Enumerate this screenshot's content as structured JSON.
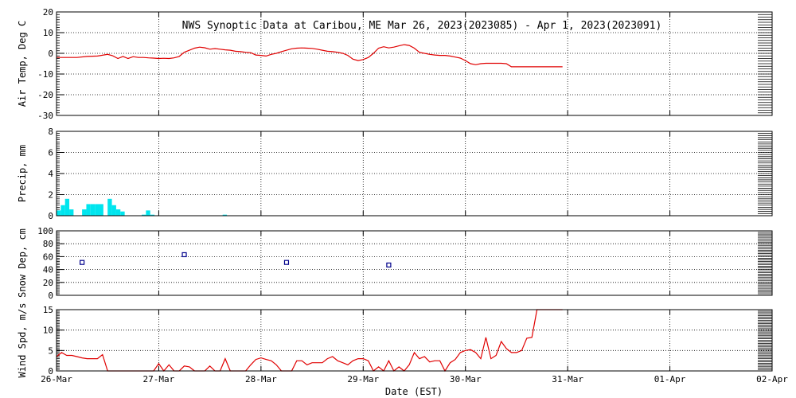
{
  "colors": {
    "air": "#e00000",
    "precip": "#00e5ee",
    "snow": "#00008b",
    "wind": "#e00000",
    "axis": "#000000",
    "grid": "#000000"
  },
  "chart_data": {
    "title": "NWS Synoptic Data at Caribou, ME   Mar 26, 2023(2023085) - Apr  1, 2023(2023091)",
    "xlabel": "Date (EST)",
    "x_tick_labels": [
      "26-Mar",
      "27-Mar",
      "28-Mar",
      "29-Mar",
      "30-Mar",
      "31-Mar",
      "01-Apr",
      "02-Apr"
    ],
    "x_range_days": [
      0,
      7
    ],
    "grid": "dotted",
    "panels": [
      {
        "key": "air",
        "type": "line",
        "ylabel": "Air Temp, Deg C",
        "ylim": [
          -30,
          20
        ],
        "yticks": [
          20,
          10,
          0,
          -10,
          -20,
          -30
        ],
        "series": [
          {
            "x": [
              0,
              0.1,
              0.2,
              0.3,
              0.4,
              0.5,
              0.55,
              0.6,
              0.65,
              0.7,
              0.75,
              0.8,
              0.85,
              0.9,
              0.95,
              1.0,
              1.05,
              1.1,
              1.15,
              1.2,
              1.25,
              1.3,
              1.35,
              1.4,
              1.45,
              1.5,
              1.55,
              1.6,
              1.65,
              1.7,
              1.75,
              1.8,
              1.85,
              1.9,
              1.95,
              2.0,
              2.05,
              2.1,
              2.15,
              2.2,
              2.25,
              2.3,
              2.35,
              2.4,
              2.45,
              2.5,
              2.55,
              2.6,
              2.65,
              2.7,
              2.75,
              2.8,
              2.85,
              2.9,
              2.95,
              3.0,
              3.05,
              3.1,
              3.15,
              3.2,
              3.25,
              3.3,
              3.35,
              3.4,
              3.45,
              3.5,
              3.55,
              3.6,
              3.65,
              3.7,
              3.75,
              3.8,
              3.85,
              3.9,
              3.95,
              4.0,
              4.05,
              4.1,
              4.15,
              4.2,
              4.25,
              4.3,
              4.35,
              4.4,
              4.45,
              4.5,
              4.55,
              4.6,
              4.65,
              4.7,
              4.75,
              4.8,
              4.85,
              4.9,
              4.95
            ],
            "y": [
              -2,
              -2,
              -2,
              -1.5,
              -1.3,
              -0.5,
              -1.2,
              -2.5,
              -1.5,
              -2.5,
              -1.6,
              -2,
              -2,
              -2.2,
              -2.3,
              -2.5,
              -2.4,
              -2.5,
              -2.2,
              -1.5,
              0.5,
              1.5,
              2.5,
              3,
              2.7,
              2,
              2.3,
              2,
              1.7,
              1.5,
              1,
              0.8,
              0.5,
              0.3,
              -0.8,
              -1,
              -1.3,
              -0.5,
              0,
              0.8,
              1.5,
              2.2,
              2.5,
              2.6,
              2.5,
              2.4,
              2,
              1.5,
              1,
              0.8,
              0.5,
              0,
              -1,
              -2.8,
              -3.5,
              -3,
              -2,
              0,
              2.5,
              3.2,
              2.6,
              3,
              3.6,
              4.2,
              3.8,
              2.5,
              0.5,
              0,
              -0.5,
              -0.8,
              -1,
              -1,
              -1.3,
              -1.8,
              -2.3,
              -3.5,
              -5,
              -5.5,
              -5,
              -4.8,
              -4.8,
              -4.8,
              -4.8,
              -5,
              -6.5,
              -6.5,
              -6.5,
              -6.5,
              -6.5,
              -6.5,
              -6.5,
              -6.5,
              -6.5,
              -6.5,
              -6.5
            ]
          }
        ]
      },
      {
        "key": "precip",
        "type": "bar",
        "ylabel": "Precip, mm",
        "ylim": [
          0,
          8
        ],
        "yticks": [
          8,
          6,
          4,
          2,
          0
        ],
        "bar_width_days": 0.0417,
        "bars": [
          {
            "x": 0.0,
            "y": 0.5
          },
          {
            "x": 0.0417,
            "y": 1.0
          },
          {
            "x": 0.0833,
            "y": 1.6
          },
          {
            "x": 0.125,
            "y": 0.6
          },
          {
            "x": 0.25,
            "y": 0.6
          },
          {
            "x": 0.2917,
            "y": 1.1
          },
          {
            "x": 0.3333,
            "y": 1.1
          },
          {
            "x": 0.375,
            "y": 1.1
          },
          {
            "x": 0.4167,
            "y": 1.1
          },
          {
            "x": 0.5,
            "y": 1.6
          },
          {
            "x": 0.5417,
            "y": 1.0
          },
          {
            "x": 0.5833,
            "y": 0.6
          },
          {
            "x": 0.625,
            "y": 0.4
          },
          {
            "x": 0.8333,
            "y": 0.1
          },
          {
            "x": 0.875,
            "y": 0.5
          },
          {
            "x": 0.9167,
            "y": 0.1
          },
          {
            "x": 1.625,
            "y": 0.1
          }
        ]
      },
      {
        "key": "snow",
        "type": "scatter",
        "ylabel": "Snow Dep, cm",
        "ylim": [
          0,
          100
        ],
        "yticks": [
          100,
          80,
          60,
          40,
          20,
          0
        ],
        "points": [
          {
            "x": 0.25,
            "y": 51
          },
          {
            "x": 1.25,
            "y": 63
          },
          {
            "x": 2.25,
            "y": 51
          },
          {
            "x": 3.25,
            "y": 47
          }
        ]
      },
      {
        "key": "wind",
        "type": "line",
        "ylabel": "Wind Spd, m/s",
        "ylim": [
          0,
          15
        ],
        "yticks": [
          15,
          10,
          5,
          0
        ],
        "series": [
          {
            "x": [
              0,
              0.05,
              0.1,
              0.15,
              0.2,
              0.25,
              0.3,
              0.35,
              0.4,
              0.45,
              0.5,
              0.55,
              0.6,
              0.65,
              0.7,
              0.75,
              0.8,
              0.85,
              0.9,
              0.95,
              1.0,
              1.05,
              1.1,
              1.15,
              1.2,
              1.25,
              1.3,
              1.35,
              1.4,
              1.45,
              1.5,
              1.55,
              1.6,
              1.65,
              1.7,
              1.75,
              1.8,
              1.85,
              1.9,
              1.95,
              2.0,
              2.05,
              2.1,
              2.15,
              2.2,
              2.25,
              2.3,
              2.35,
              2.4,
              2.45,
              2.5,
              2.55,
              2.6,
              2.65,
              2.7,
              2.75,
              2.8,
              2.85,
              2.9,
              2.95,
              3.0,
              3.05,
              3.1,
              3.15,
              3.2,
              3.25,
              3.3,
              3.35,
              3.4,
              3.45,
              3.5,
              3.55,
              3.6,
              3.65,
              3.7,
              3.75,
              3.8,
              3.85,
              3.9,
              3.95,
              4.0,
              4.05,
              4.1,
              4.15,
              4.2,
              4.25,
              4.3,
              4.35,
              4.4,
              4.45,
              4.5,
              4.55,
              4.6,
              4.65,
              4.7,
              4.75,
              4.8,
              4.85,
              4.9,
              4.95
            ],
            "y": [
              3.5,
              4.5,
              3.8,
              3.8,
              3.5,
              3.2,
              3,
              3,
              3,
              4,
              0,
              0,
              0,
              0,
              0,
              0,
              0,
              0,
              0,
              0,
              1.8,
              0,
              1.5,
              0,
              0,
              1.2,
              1,
              0,
              0,
              0,
              1.2,
              0,
              0,
              3,
              0,
              0,
              0,
              0,
              1.5,
              2.8,
              3.2,
              2.8,
              2.5,
              1.5,
              0,
              0,
              0,
              2.5,
              2.5,
              1.5,
              2,
              2,
              2,
              3,
              3.5,
              2.5,
              2,
              1.5,
              2.5,
              3,
              3,
              2.5,
              0,
              1,
              0,
              2.5,
              0,
              1,
              0,
              1.5,
              4.5,
              3,
              3.5,
              2.2,
              2.5,
              2.5,
              0,
              2,
              2.8,
              4.5,
              5,
              5.2,
              4.5,
              3,
              8.2,
              3,
              3.8,
              7.2,
              5.5,
              4.5,
              4.5,
              5,
              8,
              8.2,
              16,
              15.5,
              15,
              15,
              15,
              15
            ]
          }
        ]
      }
    ]
  }
}
